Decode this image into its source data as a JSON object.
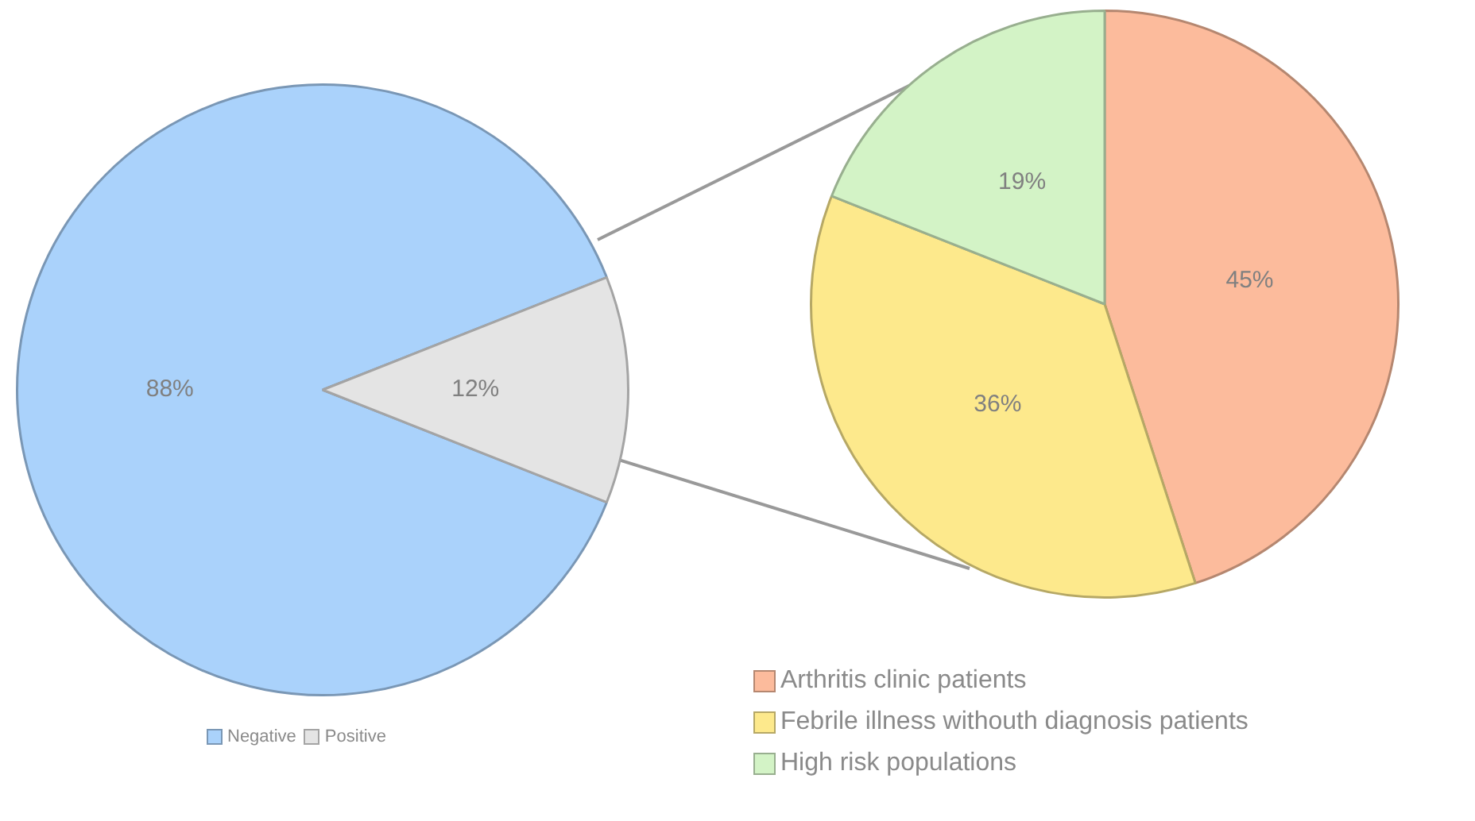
{
  "chart_data": [
    {
      "type": "pie",
      "categories": [
        "Negative",
        "Positive"
      ],
      "values": [
        88,
        12
      ],
      "colors": [
        "#aad2fb",
        "#e4e4e4"
      ],
      "value_labels": [
        "88%",
        "12%"
      ],
      "legend": "bottom"
    },
    {
      "type": "pie",
      "categories": [
        "Arthritis clinic patients",
        "Febrile illness withouth diagnosis patients",
        "High risk populations"
      ],
      "values": [
        45,
        36,
        19
      ],
      "colors": [
        "#fcbb9c",
        "#fde98c",
        "#d3f3c6"
      ],
      "value_labels": [
        "45%",
        "36%",
        "19%"
      ],
      "legend": "bottom"
    }
  ]
}
